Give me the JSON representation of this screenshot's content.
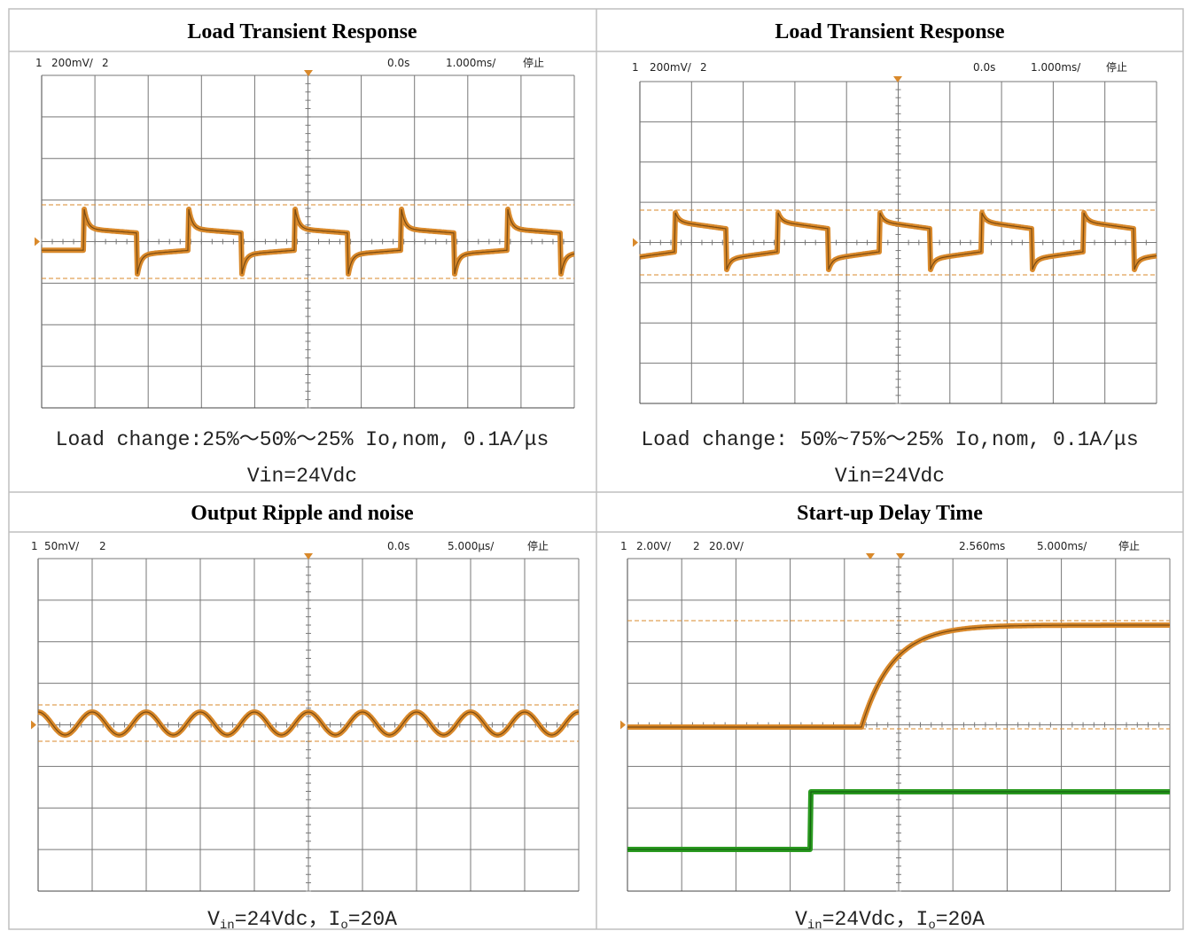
{
  "cells": [
    {
      "title": "Load Transient Response",
      "scope": {
        "header": [
          "1",
          "200mV/",
          "2",
          "0.0s",
          "1.000ms/",
          "停止"
        ]
      },
      "caption": [
        [
          {
            "text": "Load change:25%～50%～25% Io,nom, 0.1A/μs"
          }
        ],
        [
          {
            "text": "Vin=24Vdc"
          }
        ]
      ]
    },
    {
      "title": "Load Transient Response",
      "scope": {
        "header": [
          "1",
          "200mV/",
          "2",
          "0.0s",
          "1.000ms/",
          "停止"
        ]
      },
      "caption": [
        [
          {
            "text": "Load change: 50%~75%～25% Io,nom, 0.1A/μs"
          }
        ],
        [
          {
            "text": "Vin=24Vdc"
          }
        ]
      ]
    },
    {
      "title": "Output Ripple and noise",
      "scope": {
        "header": [
          "1",
          "50mV/",
          "2",
          "0.0s",
          "5.000μs/",
          "停止"
        ]
      },
      "caption": [
        [
          {
            "text": "V"
          },
          {
            "text": "in",
            "sub": true
          },
          {
            "text": "=24Vdc，I"
          },
          {
            "text": "o",
            "sub": true
          },
          {
            "text": "=20A"
          }
        ]
      ]
    },
    {
      "title": "Start-up Delay Time",
      "scope": {
        "header": [
          "1",
          "2.00V/",
          "2",
          "20.0V/",
          "2.560ms",
          "5.000ms/",
          "停止"
        ]
      },
      "caption": [
        [
          {
            "text": "V"
          },
          {
            "text": "in",
            "sub": true
          },
          {
            "text": "=24Vdc，I"
          },
          {
            "text": "o",
            "sub": true
          },
          {
            "text": "=20A"
          }
        ]
      ]
    }
  ]
}
